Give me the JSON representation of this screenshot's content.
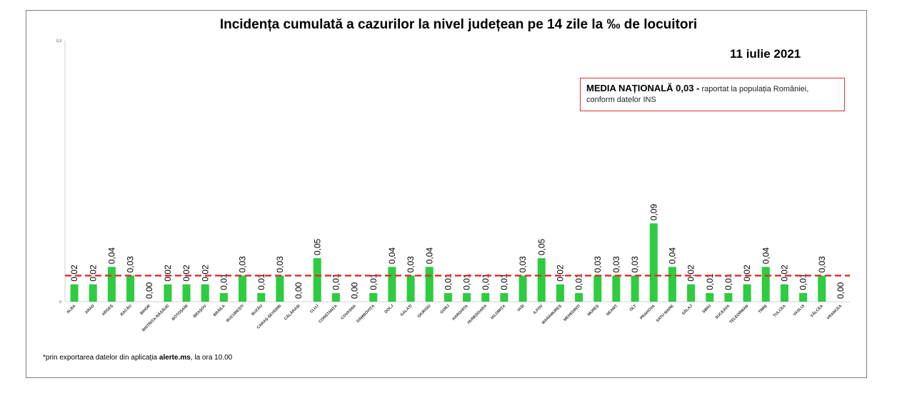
{
  "chart_data": {
    "type": "bar",
    "title": "Incidența cumulată a cazurilor la nivel județean pe 14 zile  la ‰ de locuitori",
    "date": "11 iulie 2021",
    "ylim": [
      0,
      0.3
    ],
    "y_tick_labels": [
      "0",
      "0,3"
    ],
    "reference_line": {
      "value": 0.03,
      "color": "#d9332c"
    },
    "bar_color": "#2ecc40",
    "categories": [
      "ALBA",
      "ARAD",
      "ARGEȘ",
      "BACĂU",
      "BIHOR",
      "BISTRIȚA-NĂSĂUD",
      "BOTOȘANI",
      "BRAȘOV",
      "BRĂILA",
      "BUCUREȘTI",
      "BUZĂU",
      "CARAȘ-SEVERIN",
      "CĂLĂRAȘI",
      "CLUJ",
      "CONSTANȚA",
      "COVASNA",
      "DÂMBOVIȚA",
      "DOLJ",
      "GALAȚI",
      "GIURGIU",
      "GORJ",
      "HARGHITA",
      "HUNEDOARA",
      "IALOMIȚA",
      "IAȘI",
      "ILFOV",
      "MARAMUREȘ",
      "MEHEDINȚI",
      "MUREȘ",
      "NEAMȚ",
      "OLT",
      "PRAHOVA",
      "SATU MARE",
      "SĂLAJ",
      "SIBIU",
      "SUCEAVA",
      "TELEORMAN",
      "TIMIȘ",
      "TULCEA",
      "VASLUI",
      "VÂLCEA",
      "VRANCEA"
    ],
    "values": [
      0.02,
      0.02,
      0.04,
      0.03,
      0.0,
      0.02,
      0.02,
      0.02,
      0.01,
      0.03,
      0.01,
      0.03,
      0.0,
      0.05,
      0.01,
      0.0,
      0.01,
      0.04,
      0.03,
      0.04,
      0.01,
      0.01,
      0.01,
      0.01,
      0.03,
      0.05,
      0.02,
      0.01,
      0.03,
      0.03,
      0.03,
      0.09,
      0.04,
      0.02,
      0.01,
      0.01,
      0.02,
      0.04,
      0.02,
      0.01,
      0.03,
      0.0
    ],
    "value_labels": [
      "0,02",
      "0,02",
      "0,04",
      "0,03",
      "0,00",
      "0,02",
      "0,02",
      "0,02",
      "0,01",
      "0,03",
      "0,01",
      "0,03",
      "0,00",
      "0,05",
      "0,01",
      "0,00",
      "0,01",
      "0,04",
      "0,03",
      "0,04",
      "0,01",
      "0,01",
      "0,01",
      "0,01",
      "0,03",
      "0,05",
      "0,02",
      "0,01",
      "0,03",
      "0,03",
      "0,03",
      "0,09",
      "0,04",
      "0,02",
      "0,01",
      "0,01",
      "0,02",
      "0,04",
      "0,02",
      "0,01",
      "0,03",
      "0,00"
    ]
  },
  "media_box": {
    "bold_text": "MEDIA NAȚIONALĂ 0,03 -",
    "text": " raportat la populația României, conform datelor INS"
  },
  "footnote": {
    "prefix": "*prin exportarea datelor din aplicația ",
    "bold": "alerte.ms",
    "suffix": ", la ora 10.00"
  }
}
